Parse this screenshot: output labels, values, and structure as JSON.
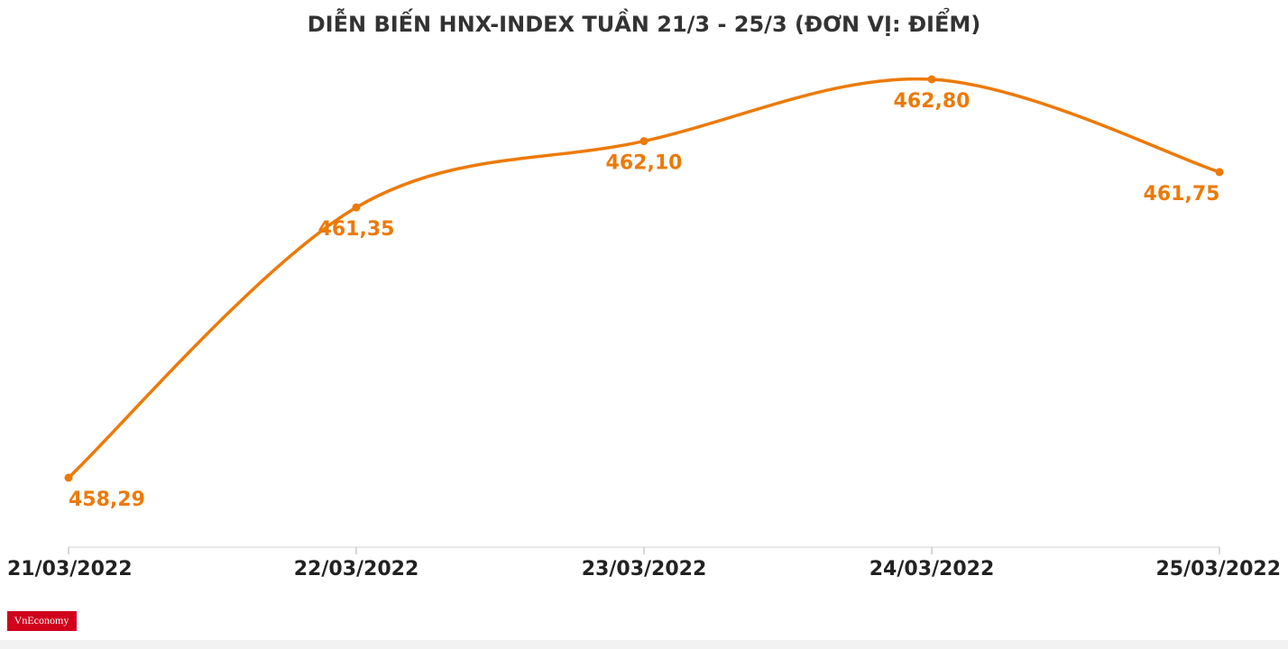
{
  "chart_data": {
    "type": "line",
    "title": "DIỄN BIẾN HNX-INDEX TUẦN 21/3 - 25/3 (ĐƠN VỊ: ĐIỂM)",
    "categories": [
      "21/03/2022",
      "22/03/2022",
      "23/03/2022",
      "24/03/2022",
      "25/03/2022"
    ],
    "values": [
      458.29,
      461.35,
      462.1,
      462.8,
      461.75
    ],
    "value_labels": [
      "458,29",
      "461,35",
      "462,10",
      "462,80",
      "461,75"
    ],
    "color": "#ec7a08",
    "grid": false
  },
  "logo": "VnEconomy"
}
